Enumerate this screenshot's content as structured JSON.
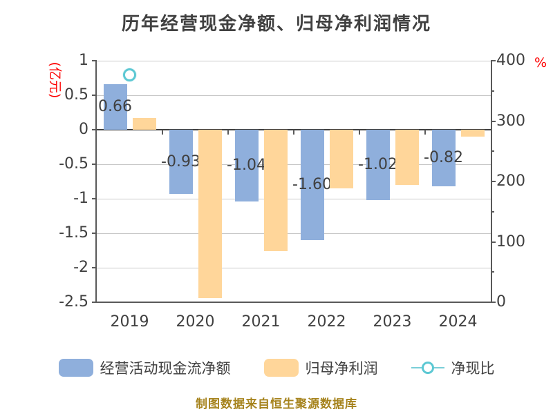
{
  "title": "历年经营现金净额、归母净利润情况",
  "caption": "制图数据来自恒生聚源数据库",
  "colors": {
    "bar_blue": "#8fafdc",
    "bar_orange": "#ffd69a",
    "ratio_line": "#79ced8",
    "ratio_ring": "#5cc8d3",
    "axis_unit_red": "#fe0000",
    "grid": "#c8c8c8",
    "zero_line": "#404040",
    "spine": "#595959",
    "text": "#404040",
    "caption_gold": "#a6831d"
  },
  "chart_data": {
    "type": "bar",
    "title": "历年经营现金净额、归母净利润情况",
    "categories": [
      "2019",
      "2020",
      "2021",
      "2022",
      "2023",
      "2024"
    ],
    "series": [
      {
        "name": "经营活动现金流净额",
        "type": "bar",
        "axis": "left",
        "values": [
          0.66,
          -0.93,
          -1.04,
          -1.6,
          -1.02,
          -0.82
        ],
        "labels": [
          "0.66",
          "-0.93",
          "-1.04",
          "-1.60",
          "-1.02",
          "-0.82"
        ]
      },
      {
        "name": "归母净利润",
        "type": "bar",
        "axis": "left",
        "values": [
          0.17,
          -2.44,
          -1.76,
          -0.85,
          -0.8,
          -0.1
        ],
        "labels": []
      },
      {
        "name": "净现比",
        "type": "line",
        "axis": "right",
        "values": [
          377,
          null,
          null,
          null,
          null,
          null
        ]
      }
    ],
    "left_axis": {
      "unit": "(亿元)",
      "min": -2.5,
      "max": 1,
      "ticks": [
        1,
        0.5,
        0,
        -0.5,
        -1,
        -1.5,
        -2,
        -2.5
      ],
      "tick_labels": [
        "1",
        "0.5",
        "0",
        "-0.5",
        "-1",
        "-1.5",
        "-2",
        "-2.5"
      ]
    },
    "right_axis": {
      "unit": "%",
      "min": 0,
      "max": 400,
      "ticks": [
        400,
        300,
        200,
        100,
        0
      ],
      "tick_labels": [
        "400",
        "300",
        "200",
        "100",
        "0"
      ],
      "minor_ticks": [
        350,
        250,
        150,
        50
      ]
    },
    "grid": "horizontal",
    "legend_position": "bottom"
  }
}
